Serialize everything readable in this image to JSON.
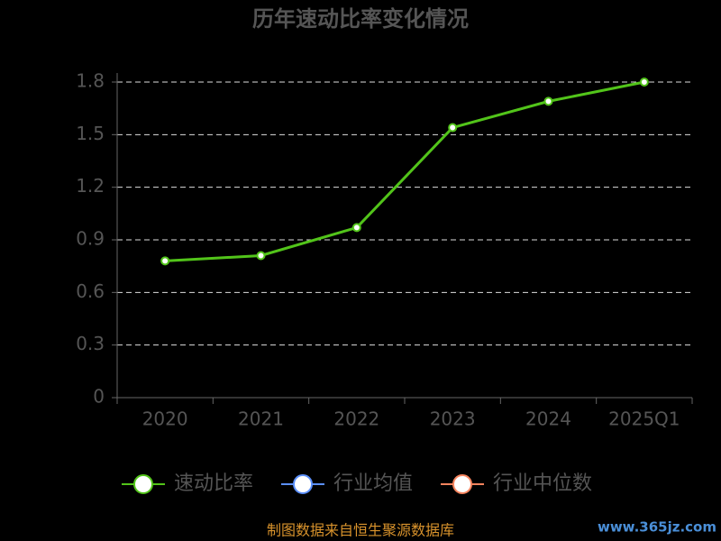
{
  "chart_data": {
    "type": "line",
    "title": "历年速动比率变化情况",
    "categories": [
      "2020",
      "2021",
      "2022",
      "2023",
      "2024",
      "2025Q1"
    ],
    "series": [
      {
        "name": "速动比率",
        "color": "#52c41a",
        "values": [
          0.78,
          0.81,
          0.97,
          1.54,
          1.69,
          1.8
        ]
      },
      {
        "name": "行业均值",
        "color": "#5b8ff9",
        "values": [
          null,
          null,
          null,
          null,
          null,
          null
        ]
      },
      {
        "name": "行业中位数",
        "color": "#f6845e",
        "values": [
          null,
          null,
          null,
          null,
          null,
          null
        ]
      }
    ],
    "ylim": [
      0,
      1.8
    ],
    "yticks": [
      0,
      0.3,
      0.6,
      0.9,
      1.2,
      1.5,
      1.8
    ],
    "grid": true,
    "legend": "bottom",
    "footer": "制图数据来自恒生聚源数据库",
    "watermark": "www.365jz.com"
  }
}
